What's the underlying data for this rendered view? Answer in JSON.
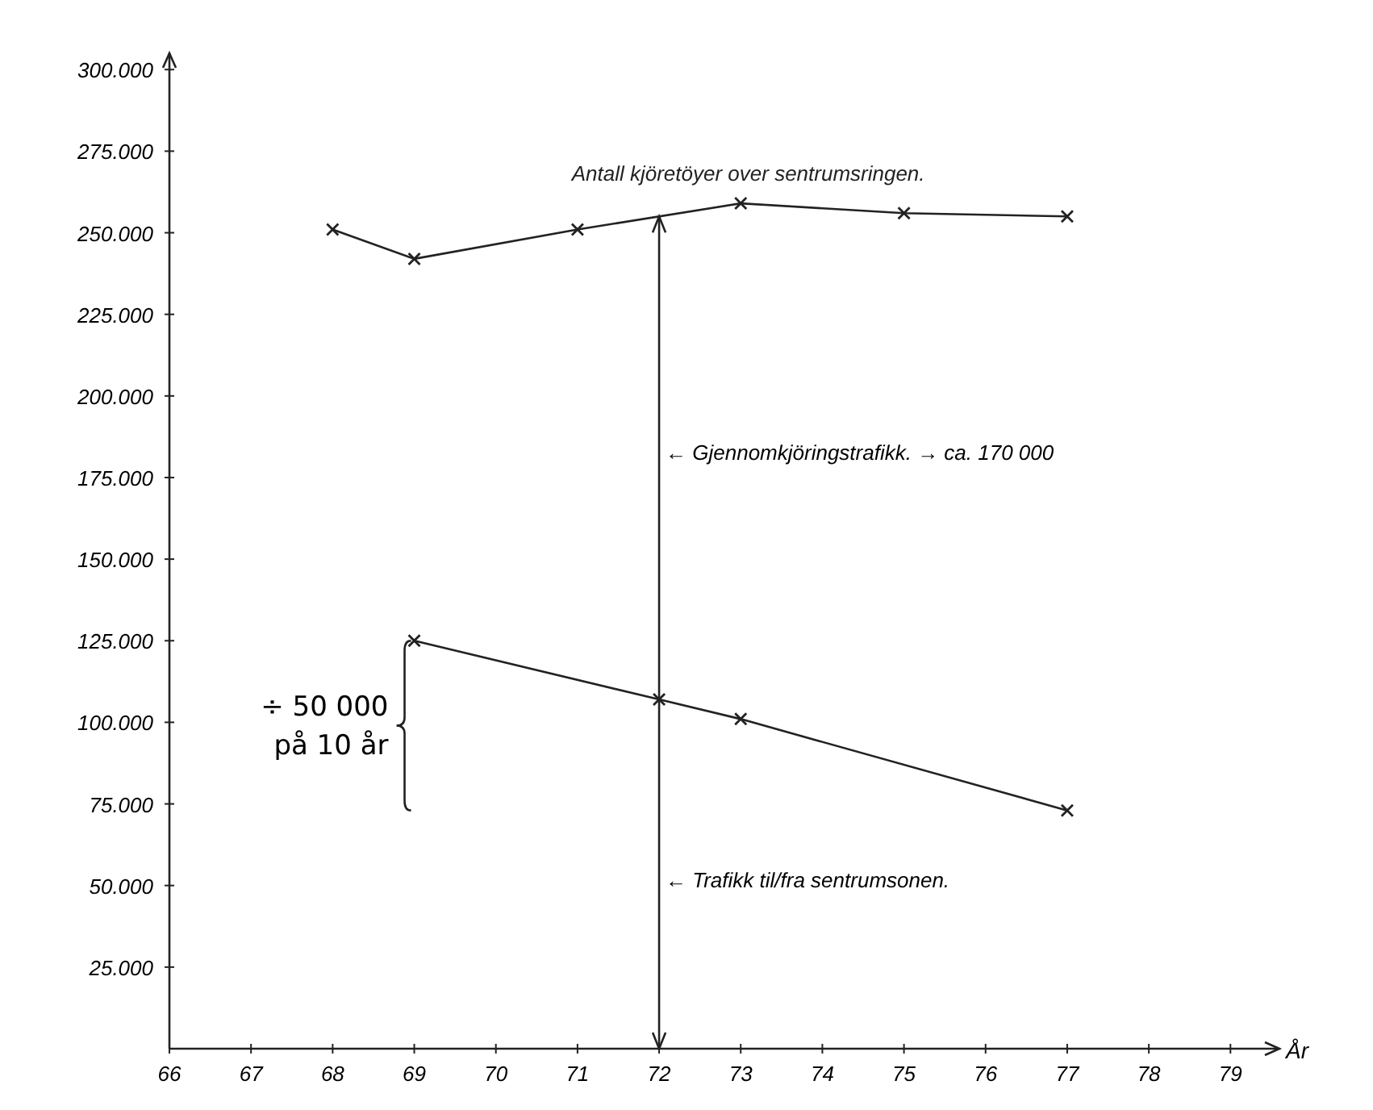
{
  "chart_data": {
    "type": "line",
    "xlabel": "År",
    "series": [
      {
        "name": "Antall kjöretöyer over sentrumsringen.",
        "color": "#222222",
        "x": [
          68,
          69,
          71,
          73,
          75,
          77
        ],
        "values": [
          251000,
          242000,
          251000,
          259000,
          256000,
          255000
        ]
      },
      {
        "color": "#222222",
        "x": [
          69,
          72,
          73,
          77
        ],
        "values": [
          125000,
          107000,
          101000,
          73000
        ]
      }
    ],
    "xlim": [
      66,
      79.6
    ],
    "xticks": [
      66,
      67,
      68,
      69,
      70,
      71,
      72,
      73,
      74,
      75,
      76,
      77,
      78,
      79
    ],
    "ylim": [
      0,
      305000
    ],
    "yticks": [
      {
        "value": 25000,
        "label": "25.000"
      },
      {
        "value": 50000,
        "label": "50.000"
      },
      {
        "value": 75000,
        "label": "75.000"
      },
      {
        "value": 100000,
        "label": "100.000"
      },
      {
        "value": 125000,
        "label": "125.000"
      },
      {
        "value": 150000,
        "label": "150.000"
      },
      {
        "value": 175000,
        "label": "175.000"
      },
      {
        "value": 200000,
        "label": "200.000"
      },
      {
        "value": 225000,
        "label": "225.000"
      },
      {
        "value": 250000,
        "label": "250.000"
      },
      {
        "value": 275000,
        "label": "275.000"
      },
      {
        "value": 300000,
        "label": "300.000"
      }
    ],
    "ref_lines": [
      {
        "axis": "x",
        "value": 72,
        "color": "#222222"
      }
    ],
    "annotations": [
      {
        "text": "← Gjennomkjöringstrafikk. → ca. 170 000",
        "x": 72,
        "y": 183000
      },
      {
        "text": "← Trafikk til/fra sentrumsonen.",
        "x": 72,
        "y": 52000
      },
      "÷ 50 000 på 10 år"
    ],
    "marker": "cross",
    "line_style": "solid",
    "grid": false
  }
}
